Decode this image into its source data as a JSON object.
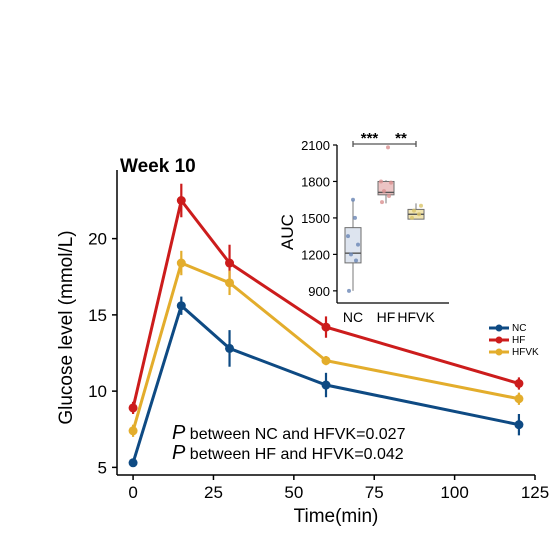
{
  "chart_data": [
    {
      "type": "line",
      "title": "Week 10",
      "xlabel": "Time(min)",
      "ylabel": "Glucose level (mmol/L)",
      "x": [
        0,
        15,
        30,
        60,
        120
      ],
      "xlim": [
        -5,
        125
      ],
      "ylim": [
        4.5,
        24.5
      ],
      "xticks": [
        "0",
        "25",
        "50",
        "75",
        "100",
        "125"
      ],
      "xtick_values": [
        0,
        25,
        50,
        75,
        100,
        125
      ],
      "yticks": [
        "5",
        "10",
        "15",
        "20"
      ],
      "ytick_values": [
        5,
        10,
        15,
        20
      ],
      "grid": false,
      "legend_position": "right",
      "series": [
        {
          "name": "NC",
          "color": "#0e4a83",
          "values": [
            5.3,
            15.6,
            12.8,
            10.4,
            7.8
          ],
          "err": [
            0.2,
            0.6,
            1.2,
            0.8,
            0.7
          ]
        },
        {
          "name": "HF",
          "color": "#cc1c1c",
          "values": [
            8.9,
            22.5,
            18.4,
            14.2,
            10.5
          ],
          "err": [
            0.4,
            1.1,
            1.2,
            0.7,
            0.4
          ]
        },
        {
          "name": "HFVK",
          "color": "#e3ad2c",
          "values": [
            7.4,
            18.4,
            17.1,
            12.0,
            9.5
          ],
          "err": [
            0.4,
            0.8,
            0.8,
            0.3,
            0.4
          ]
        }
      ],
      "annotations": [
        {
          "p": "P",
          "text": " between NC and HFVK=0.027"
        },
        {
          "p": "P",
          "text": " between HF and HFVK=0.042"
        }
      ]
    },
    {
      "type": "box",
      "ylabel": "AUC",
      "categories": [
        "NC",
        "HF",
        "HFVK"
      ],
      "ylim": [
        800,
        2100
      ],
      "yticks": [
        "900",
        "1200",
        "1500",
        "1800",
        "2100"
      ],
      "ytick_values": [
        900,
        1200,
        1500,
        1800,
        2100
      ],
      "boxes": [
        {
          "name": "NC",
          "min": 900,
          "q1": 1130,
          "median": 1210,
          "q3": 1420,
          "max": 1650,
          "fill": "#dde4ef",
          "point_color": "#6a86b5",
          "points": [
            900,
            1150,
            1200,
            1280,
            1350,
            1500,
            1650
          ]
        },
        {
          "name": "HF",
          "min": 1620,
          "q1": 1690,
          "median": 1710,
          "q3": 1800,
          "max": 1810,
          "fill": "#ecc4c4",
          "point_color": "#d99090",
          "points": [
            1630,
            1680,
            1720,
            1790,
            1800,
            2080
          ]
        },
        {
          "name": "HFVK",
          "min": 1490,
          "q1": 1490,
          "median": 1530,
          "q3": 1570,
          "max": 1620,
          "fill": "#f1e4b0",
          "point_color": "#d9c46a",
          "points": [
            1500,
            1530,
            1560,
            1600
          ]
        }
      ],
      "significance": [
        {
          "label": "***",
          "from": "NC",
          "to": "HF"
        },
        {
          "label": "**",
          "from": "HF",
          "to": "HFVK"
        }
      ]
    }
  ]
}
